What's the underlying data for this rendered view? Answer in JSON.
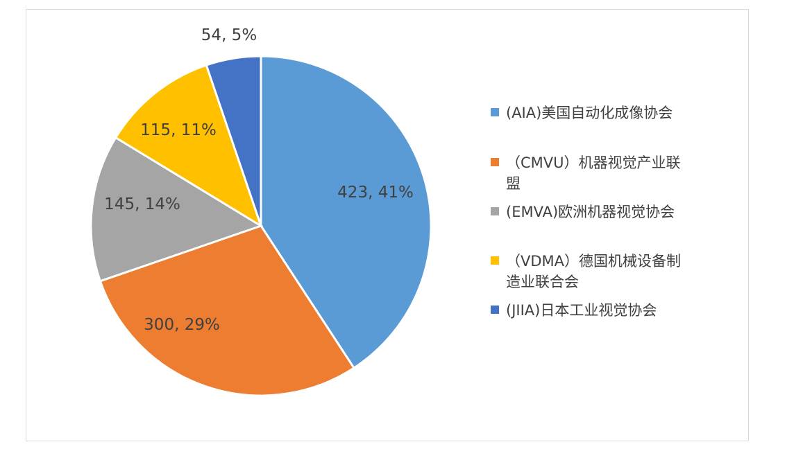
{
  "chart_data": {
    "type": "pie",
    "categories": [
      "(AIA)美国自动化成像协会",
      "（CMVU）机器视觉产业联盟",
      "(EMVA)欧洲机器视觉协会",
      "（VDMA）德国机械设备制造业联合会",
      "(JIIA)日本工业视觉协会"
    ],
    "values": [
      423,
      300,
      145,
      115,
      54
    ],
    "percents": [
      41,
      29,
      14,
      11,
      5
    ],
    "data_labels": [
      "423, 41%",
      "300, 29%",
      "145, 14%",
      "115, 11%",
      "54, 5%"
    ],
    "colors": [
      "#5B9BD5",
      "#ED7D31",
      "#A5A5A5",
      "#FFC000",
      "#4472C4"
    ],
    "legend_position": "right",
    "title": ""
  },
  "legend": {
    "items": [
      {
        "lines": [
          "(AIA)美国自动化成像协会"
        ]
      },
      {
        "lines": [
          "（CMVU）机器视觉产业联",
          "盟"
        ]
      },
      {
        "lines": [
          "(EMVA)欧洲机器视觉协会"
        ]
      },
      {
        "lines": [
          "（VDMA）德国机械设备制",
          "造业联合会"
        ]
      },
      {
        "lines": [
          "(JIIA)日本工业视觉协会"
        ]
      }
    ]
  }
}
